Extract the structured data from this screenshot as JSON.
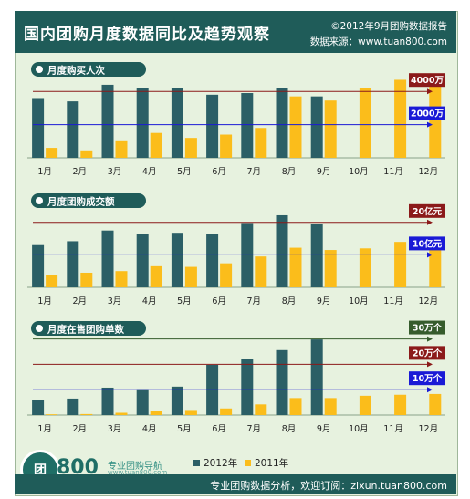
{
  "header": {
    "title": "国内团购月度数据同比及趋势观察",
    "report": "©2012年9月团购数据报告",
    "source": "数据来源：www.tuan800.com"
  },
  "footer": {
    "text": "专业团购数据分析，欢迎订阅：zixun.tuan800.com"
  },
  "logo": {
    "circle": "团",
    "number": "800",
    "text": "专业团购导航",
    "sub": "www.tuan800.com"
  },
  "legend": {
    "series_2012": "2012年",
    "series_2011": "2011年"
  },
  "colors": {
    "series_2012": "#2b5f66",
    "series_2011": "#fbbd1b",
    "dark_red": "#8b1a1a",
    "blue": "#1a1ad6",
    "dark_green": "#365c2c",
    "header_bg": "#1f5c59",
    "panel_bg": "#e7f2df"
  },
  "chart_data": [
    {
      "type": "bar",
      "title": "月度购买人次",
      "categories": [
        "1月",
        "2月",
        "3月",
        "4月",
        "5月",
        "6月",
        "7月",
        "8月",
        "9月",
        "10月",
        "11月",
        "12月"
      ],
      "ylim": [
        0,
        5000
      ],
      "unit": "万",
      "series": [
        {
          "name": "2012年",
          "values": [
            3600,
            3400,
            4400,
            4200,
            4200,
            3800,
            3900,
            4200,
            3700,
            null,
            null,
            null
          ]
        },
        {
          "name": "2011年",
          "values": [
            600,
            450,
            1000,
            1500,
            1200,
            1400,
            1800,
            3700,
            3450,
            4200,
            4700,
            4300
          ]
        }
      ],
      "reference_lines": [
        {
          "label": "4000万",
          "value": 4000,
          "color": "#8b1a1a"
        },
        {
          "label": "2000万",
          "value": 2000,
          "color": "#1a1ad6"
        }
      ]
    },
    {
      "type": "bar",
      "title": "月度团购成交额",
      "categories": [
        "1月",
        "2月",
        "3月",
        "4月",
        "5月",
        "6月",
        "7月",
        "8月",
        "9月",
        "10月",
        "11月",
        "12月"
      ],
      "ylim": [
        0,
        25
      ],
      "unit": "亿元",
      "series": [
        {
          "name": "2012年",
          "values": [
            13,
            14.2,
            17.5,
            16.5,
            16.8,
            16.4,
            19.8,
            22.2,
            19.5,
            null,
            null,
            null
          ]
        },
        {
          "name": "2011年",
          "values": [
            3.7,
            4.5,
            5.0,
            6.5,
            6.3,
            7.4,
            9.5,
            12.2,
            11.5,
            12.0,
            14.0,
            15.2
          ]
        }
      ],
      "reference_lines": [
        {
          "label": "20亿元",
          "value": 20,
          "color": "#8b1a1a"
        },
        {
          "label": "10亿元",
          "value": 10,
          "color": "#1a1ad6"
        }
      ]
    },
    {
      "type": "bar",
      "title": "月度在售团购单数",
      "categories": [
        "1月",
        "2月",
        "3月",
        "4月",
        "5月",
        "6月",
        "7月",
        "8月",
        "9月",
        "10月",
        "11月",
        "12月"
      ],
      "ylim": [
        0,
        32
      ],
      "unit": "万个",
      "series": [
        {
          "name": "2012年",
          "values": [
            5.8,
            6.5,
            10.8,
            10.2,
            11.2,
            19.8,
            22.2,
            25.6,
            29.8,
            null,
            null,
            null
          ]
        },
        {
          "name": "2011年",
          "values": [
            0.3,
            0.4,
            0.9,
            1.5,
            2.0,
            2.6,
            4.2,
            6.7,
            6.7,
            7.6,
            8.0,
            8.3
          ]
        }
      ],
      "reference_lines": [
        {
          "label": "30万个",
          "value": 30,
          "color": "#365c2c"
        },
        {
          "label": "20万个",
          "value": 20,
          "color": "#8b1a1a"
        },
        {
          "label": "10万个",
          "value": 10,
          "color": "#1a1ad6"
        }
      ]
    }
  ]
}
